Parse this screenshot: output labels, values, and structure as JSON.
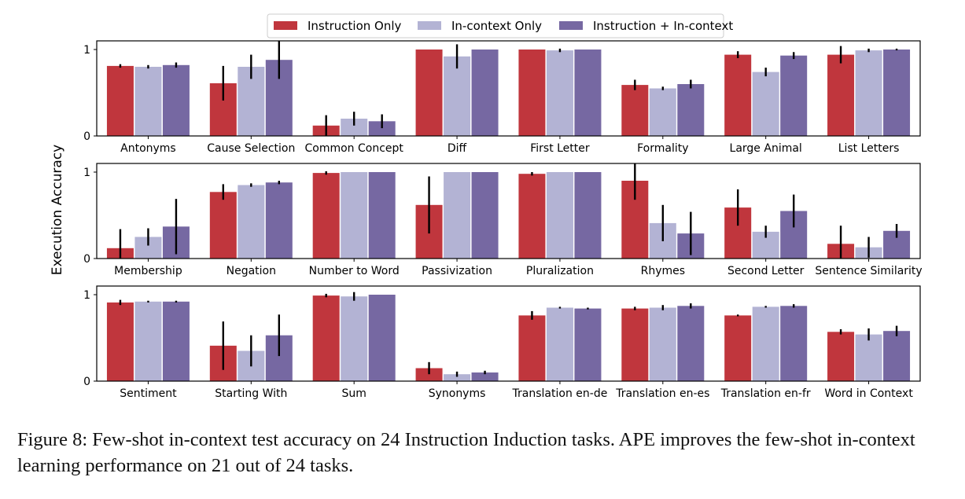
{
  "caption": "Figure 8: Few-shot in-context test accuracy on 24 Instruction Induction tasks. APE improves the few-shot in-context learning performance on 21 out of 24 tasks.",
  "chart_data": {
    "type": "bar",
    "ylabel": "Execution Accuracy",
    "ylim": [
      0,
      1.1
    ],
    "yticks": [
      0,
      1
    ],
    "legend_position": "top-center",
    "series": [
      {
        "name": "Instruction Only",
        "color": "#c0363d"
      },
      {
        "name": "In-context Only",
        "color": "#b3b3d4"
      },
      {
        "name": "Instruction + In-context",
        "color": "#7668a2"
      }
    ],
    "panels": [
      {
        "categories": [
          "Antonyms",
          "Cause Selection",
          "Common Concept",
          "Diff",
          "First Letter",
          "Formality",
          "Large Animal",
          "List Letters"
        ],
        "values": [
          [
            0.81,
            0.8,
            0.82
          ],
          [
            0.61,
            0.8,
            0.88
          ],
          [
            0.12,
            0.2,
            0.17
          ],
          [
            1.0,
            0.92,
            1.0
          ],
          [
            1.0,
            0.99,
            1.0
          ],
          [
            0.59,
            0.55,
            0.6
          ],
          [
            0.94,
            0.74,
            0.93
          ],
          [
            0.94,
            0.99,
            1.0
          ]
        ],
        "errors": [
          [
            0.02,
            0.02,
            0.03
          ],
          [
            0.2,
            0.14,
            0.22
          ],
          [
            0.12,
            0.08,
            0.08
          ],
          [
            0.0,
            0.14,
            0.0
          ],
          [
            0.0,
            0.02,
            0.0
          ],
          [
            0.06,
            0.02,
            0.05
          ],
          [
            0.04,
            0.05,
            0.04
          ],
          [
            0.1,
            0.02,
            0.01
          ]
        ]
      },
      {
        "categories": [
          "Membership",
          "Negation",
          "Number to Word",
          "Passivization",
          "Pluralization",
          "Rhymes",
          "Second Letter",
          "Sentence Similarity"
        ],
        "values": [
          [
            0.12,
            0.25,
            0.37
          ],
          [
            0.77,
            0.85,
            0.88
          ],
          [
            0.99,
            1.0,
            1.0
          ],
          [
            0.62,
            1.0,
            1.0
          ],
          [
            0.98,
            1.0,
            1.0
          ],
          [
            0.9,
            0.41,
            0.29
          ],
          [
            0.59,
            0.31,
            0.55
          ],
          [
            0.17,
            0.13,
            0.32
          ]
        ],
        "errors": [
          [
            0.22,
            0.1,
            0.32
          ],
          [
            0.09,
            0.02,
            0.02
          ],
          [
            0.02,
            0.0,
            0.0
          ],
          [
            0.33,
            0.0,
            0.0
          ],
          [
            0.02,
            0.0,
            0.0
          ],
          [
            0.22,
            0.21,
            0.25
          ],
          [
            0.21,
            0.07,
            0.19
          ],
          [
            0.21,
            0.12,
            0.08
          ]
        ]
      },
      {
        "categories": [
          "Sentiment",
          "Starting With",
          "Sum",
          "Synonyms",
          "Translation en-de",
          "Translation en-es",
          "Translation en-fr",
          "Word in Context"
        ],
        "values": [
          [
            0.91,
            0.92,
            0.92
          ],
          [
            0.41,
            0.35,
            0.53
          ],
          [
            0.99,
            0.98,
            1.0
          ],
          [
            0.15,
            0.08,
            0.1
          ],
          [
            0.76,
            0.85,
            0.84
          ],
          [
            0.84,
            0.85,
            0.87
          ],
          [
            0.76,
            0.86,
            0.87
          ],
          [
            0.57,
            0.54,
            0.58
          ]
        ],
        "errors": [
          [
            0.03,
            0.01,
            0.01
          ],
          [
            0.28,
            0.18,
            0.24
          ],
          [
            0.02,
            0.05,
            0.0
          ],
          [
            0.07,
            0.03,
            0.02
          ],
          [
            0.05,
            0.01,
            0.01
          ],
          [
            0.02,
            0.03,
            0.03
          ],
          [
            0.01,
            0.01,
            0.02
          ],
          [
            0.03,
            0.07,
            0.06
          ]
        ]
      }
    ]
  }
}
